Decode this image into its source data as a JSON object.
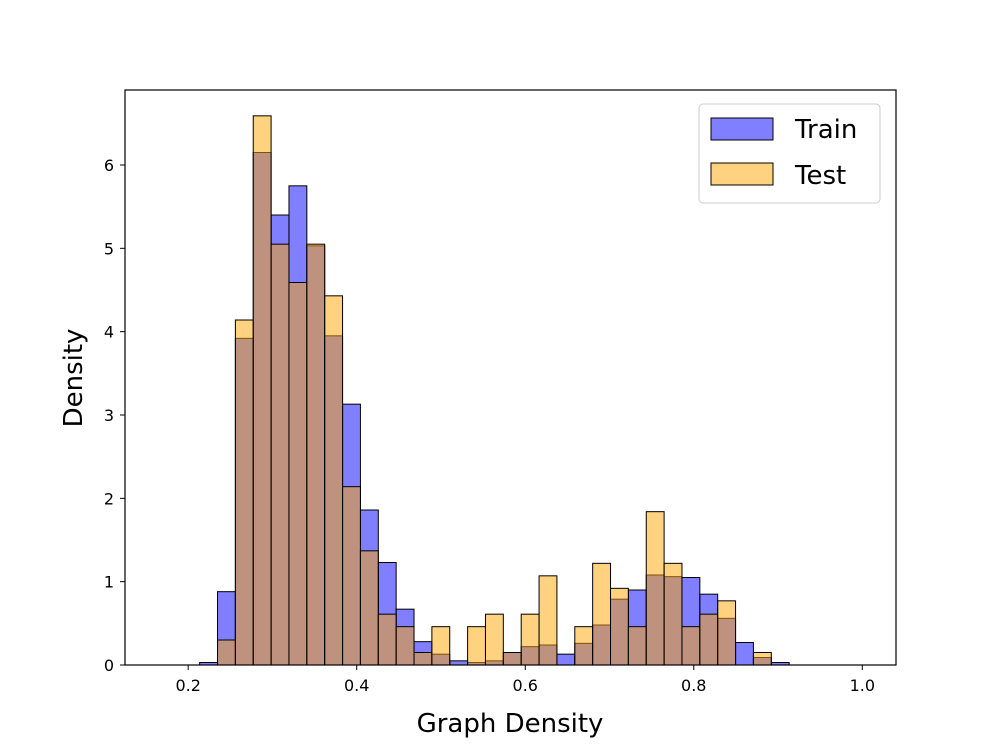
{
  "chart_data": {
    "type": "histogram",
    "title": "",
    "xlabel": "Graph Density",
    "ylabel": "Density",
    "xlim": [
      0.125,
      1.04
    ],
    "ylim": [
      0,
      6.9
    ],
    "xticks": [
      0.2,
      0.4,
      0.6,
      0.8,
      1.0
    ],
    "xtick_labels": [
      "0.2",
      "0.4",
      "0.6",
      "0.8",
      "1.0"
    ],
    "yticks": [
      0,
      1,
      2,
      3,
      4,
      5,
      6
    ],
    "ytick_labels": [
      "0",
      "1",
      "2",
      "3",
      "4",
      "5",
      "6"
    ],
    "bin_start": 0.15,
    "bin_width": 0.0212,
    "legend_position": "upper right",
    "series": [
      {
        "name": "Train",
        "color": "#0000ff",
        "values": [
          0,
          0,
          0,
          0.03,
          0.88,
          3.92,
          6.15,
          5.4,
          5.75,
          5.03,
          3.95,
          3.13,
          1.86,
          1.23,
          0.67,
          0.28,
          0.13,
          0.05,
          0.03,
          0.05,
          0.15,
          0.22,
          0.24,
          0.13,
          0.26,
          0.48,
          0.79,
          0.9,
          1.08,
          1.06,
          1.05,
          0.85,
          0.56,
          0.27,
          0.09,
          0.03,
          0,
          0,
          0,
          0,
          0
        ]
      },
      {
        "name": "Test",
        "color": "#ffa500",
        "values": [
          0,
          0,
          0,
          0,
          0.3,
          4.14,
          6.59,
          5.05,
          4.59,
          5.05,
          4.43,
          2.14,
          1.37,
          0.61,
          0.46,
          0.15,
          0.46,
          0,
          0.46,
          0.61,
          0.15,
          0.61,
          1.07,
          0,
          0.46,
          1.22,
          0.92,
          0.46,
          1.84,
          1.22,
          0.46,
          0.61,
          0.77,
          0,
          0.15,
          0,
          0,
          0,
          0,
          0,
          0
        ]
      }
    ]
  }
}
